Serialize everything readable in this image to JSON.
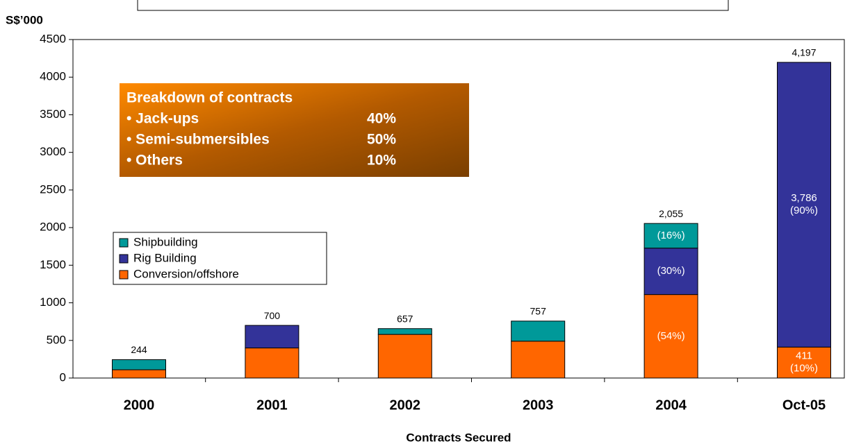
{
  "chart_data": {
    "type": "stacked_bar",
    "ylabel": "S$’000",
    "xlabel": "Contracts Secured",
    "categories": [
      "2000",
      "2001",
      "2002",
      "2003",
      "2004",
      "Oct-05"
    ],
    "series": [
      {
        "name": "Conversion/offshore",
        "color": "#ff6600",
        "values": [
          110,
          400,
          580,
          490,
          1110,
          411
        ],
        "value_labels": [
          null,
          null,
          null,
          null,
          null,
          "411"
        ],
        "share_labels": [
          null,
          null,
          null,
          null,
          "(54%)",
          "(10%)"
        ]
      },
      {
        "name": "Rig Building",
        "color": "#333399",
        "values": [
          0,
          300,
          0,
          0,
          617,
          3786
        ],
        "value_labels": [
          null,
          null,
          null,
          null,
          null,
          "3,786"
        ],
        "share_labels": [
          null,
          null,
          null,
          null,
          "(30%)",
          "(90%)"
        ]
      },
      {
        "name": "Shipbuilding",
        "color": "#009999",
        "values": [
          134,
          0,
          77,
          267,
          328,
          0
        ],
        "value_labels": [
          null,
          null,
          null,
          null,
          null,
          null
        ],
        "share_labels": [
          null,
          null,
          null,
          null,
          "(16%)",
          null
        ]
      }
    ],
    "totals": [
      244,
      700,
      657,
      757,
      2055,
      4197
    ],
    "total_labels": [
      "244",
      "700",
      "657",
      "757",
      "2,055",
      "4,197"
    ],
    "ylim": [
      0,
      4500
    ],
    "yticks": [
      0,
      500,
      1000,
      1500,
      2000,
      2500,
      3000,
      3500,
      4000,
      4500
    ],
    "inset": {
      "title": "Breakdown of contracts",
      "items": [
        {
          "name": "• Jack-ups",
          "share": "40%"
        },
        {
          "name": "• Semi-submersibles",
          "share": "50%"
        },
        {
          "name": "• Others",
          "share": "10%"
        }
      ]
    }
  }
}
